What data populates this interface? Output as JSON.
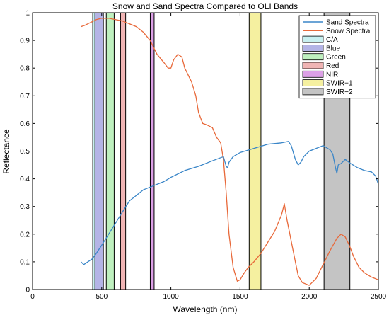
{
  "chart_data": {
    "type": "line",
    "title": "Snow and Sand Spectra Compared to OLI Bands",
    "xlabel": "Wavelength (nm)",
    "ylabel": "Reflectance",
    "xlim": [
      0,
      2500
    ],
    "ylim": [
      0,
      1
    ],
    "grid": false,
    "legend_position": "top-right",
    "x_ticks": [
      {
        "value": 0,
        "label": "0"
      },
      {
        "value": 500,
        "label": "500"
      },
      {
        "value": 1000,
        "label": "1000"
      },
      {
        "value": 1500,
        "label": "1500"
      },
      {
        "value": 2000,
        "label": "2000"
      },
      {
        "value": 2500,
        "label": "2500"
      }
    ],
    "y_ticks": [
      {
        "value": 0,
        "label": "0"
      },
      {
        "value": 0.1,
        "label": "0.1"
      },
      {
        "value": 0.2,
        "label": "0.2"
      },
      {
        "value": 0.3,
        "label": "0.3"
      },
      {
        "value": 0.4,
        "label": "0.4"
      },
      {
        "value": 0.5,
        "label": "0.5"
      },
      {
        "value": 0.6,
        "label": "0.6"
      },
      {
        "value": 0.7,
        "label": "0.7"
      },
      {
        "value": 0.8,
        "label": "0.8"
      },
      {
        "value": 0.9,
        "label": "0.9"
      },
      {
        "value": 1,
        "label": "1"
      }
    ],
    "series": [
      {
        "name": "Sand Spectra",
        "color": "#3a86c8",
        "x": [
          350,
          370,
          400,
          430,
          460,
          500,
          550,
          600,
          650,
          700,
          750,
          800,
          850,
          900,
          950,
          1000,
          1100,
          1200,
          1300,
          1380,
          1400,
          1410,
          1420,
          1450,
          1500,
          1600,
          1700,
          1800,
          1850,
          1870,
          1900,
          1920,
          1940,
          1960,
          2000,
          2050,
          2100,
          2150,
          2170,
          2190,
          2200,
          2210,
          2230,
          2260,
          2300,
          2350,
          2400,
          2450,
          2480,
          2500
        ],
        "y": [
          0.1,
          0.09,
          0.1,
          0.11,
          0.13,
          0.16,
          0.2,
          0.24,
          0.28,
          0.32,
          0.34,
          0.36,
          0.37,
          0.38,
          0.39,
          0.405,
          0.43,
          0.445,
          0.465,
          0.48,
          0.445,
          0.44,
          0.46,
          0.48,
          0.495,
          0.51,
          0.525,
          0.53,
          0.535,
          0.52,
          0.47,
          0.45,
          0.46,
          0.48,
          0.5,
          0.51,
          0.52,
          0.505,
          0.49,
          0.44,
          0.42,
          0.45,
          0.455,
          0.47,
          0.455,
          0.44,
          0.43,
          0.425,
          0.41,
          0.38
        ]
      },
      {
        "name": "Snow Spectra",
        "color": "#e8693a",
        "x": [
          350,
          380,
          420,
          460,
          500,
          550,
          600,
          650,
          700,
          750,
          800,
          850,
          900,
          950,
          980,
          1000,
          1020,
          1050,
          1080,
          1100,
          1150,
          1180,
          1200,
          1230,
          1260,
          1300,
          1330,
          1360,
          1380,
          1400,
          1420,
          1450,
          1480,
          1500,
          1530,
          1560,
          1600,
          1650,
          1700,
          1750,
          1800,
          1820,
          1840,
          1860,
          1880,
          1900,
          1920,
          1950,
          2000,
          2050,
          2100,
          2150,
          2200,
          2230,
          2260,
          2290,
          2320,
          2360,
          2400,
          2450,
          2500
        ],
        "y": [
          0.95,
          0.955,
          0.965,
          0.975,
          0.98,
          0.98,
          0.975,
          0.97,
          0.96,
          0.95,
          0.93,
          0.9,
          0.85,
          0.82,
          0.8,
          0.8,
          0.83,
          0.85,
          0.84,
          0.8,
          0.75,
          0.7,
          0.64,
          0.6,
          0.595,
          0.585,
          0.55,
          0.53,
          0.47,
          0.35,
          0.2,
          0.08,
          0.03,
          0.035,
          0.06,
          0.08,
          0.1,
          0.13,
          0.17,
          0.21,
          0.27,
          0.31,
          0.25,
          0.2,
          0.15,
          0.1,
          0.05,
          0.025,
          0.015,
          0.04,
          0.09,
          0.14,
          0.185,
          0.2,
          0.19,
          0.16,
          0.12,
          0.08,
          0.06,
          0.045,
          0.035
        ]
      }
    ],
    "bands": [
      {
        "name": "C/A",
        "start": 435,
        "end": 451,
        "color": "#c8f0f0"
      },
      {
        "name": "Blue",
        "start": 452,
        "end": 512,
        "color": "#b4b4e6"
      },
      {
        "name": "Green",
        "start": 533,
        "end": 590,
        "color": "#bff0bf"
      },
      {
        "name": "Red",
        "start": 636,
        "end": 673,
        "color": "#f0b4b4"
      },
      {
        "name": "NIR",
        "start": 851,
        "end": 879,
        "color": "#dca0e6"
      },
      {
        "name": "SWIR−1",
        "start": 1566,
        "end": 1651,
        "color": "#f5f0a0"
      },
      {
        "name": "SWIR−2",
        "start": 2107,
        "end": 2294,
        "color": "#c4c4c4"
      }
    ]
  }
}
